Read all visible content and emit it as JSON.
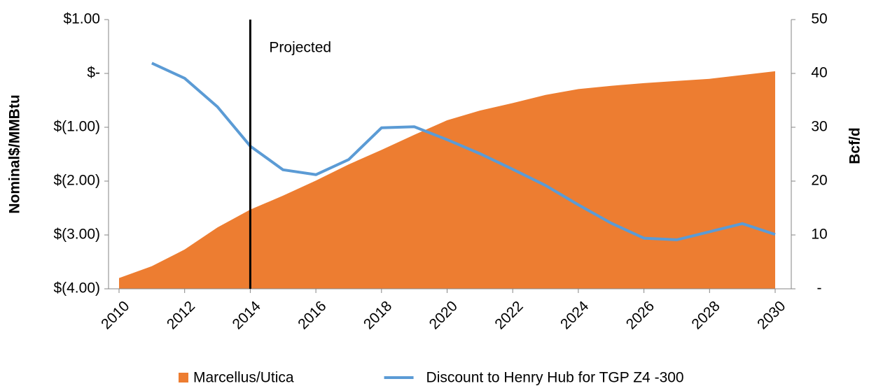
{
  "chart_data": {
    "type": "area-line",
    "y_label": "Nominal$/MMBtu",
    "y2_label": "Bcf/d",
    "x": [
      2010,
      2011,
      2012,
      2013,
      2014,
      2015,
      2016,
      2017,
      2018,
      2019,
      2020,
      2021,
      2022,
      2023,
      2024,
      2025,
      2026,
      2027,
      2028,
      2029,
      2030
    ],
    "xlim": [
      2010,
      2030
    ],
    "xticks": [
      2010,
      2012,
      2014,
      2016,
      2018,
      2020,
      2022,
      2024,
      2026,
      2028,
      2030
    ],
    "ylim": [
      -4,
      1
    ],
    "yticks": [
      {
        "value": 1,
        "label": "$1.00"
      },
      {
        "value": 0,
        "label": "$-"
      },
      {
        "value": -1,
        "label": "$(1.00)"
      },
      {
        "value": -2,
        "label": "$(2.00)"
      },
      {
        "value": -3,
        "label": "$(3.00)"
      },
      {
        "value": -4,
        "label": "$(4.00)"
      }
    ],
    "y2lim": [
      0,
      50
    ],
    "y2ticks": [
      50,
      40,
      30,
      20,
      10,
      {
        "value": 0,
        "label": "-"
      }
    ],
    "series": [
      {
        "name": "Marcellus/Utica",
        "kind": "area",
        "axis": "y2",
        "color": "#ed7d31",
        "values": [
          2,
          4.2,
          7.3,
          11.4,
          14.7,
          17.3,
          20.1,
          23.1,
          25.8,
          28.6,
          31.3,
          33.1,
          34.5,
          36.0,
          37.1,
          37.7,
          38.2,
          38.6,
          39.0,
          39.7,
          40.4
        ]
      },
      {
        "name": "Discount to Henry Hub for TGP Z4 -300",
        "kind": "line",
        "axis": "y",
        "color": "#5b9bd5",
        "values": [
          null,
          0.19,
          -0.09,
          -0.62,
          -1.35,
          -1.79,
          -1.88,
          -1.6,
          -1.01,
          -0.99,
          -1.23,
          -1.49,
          -1.78,
          -2.08,
          -2.44,
          -2.78,
          -3.06,
          -3.09,
          -2.94,
          -2.79,
          -2.99
        ]
      }
    ],
    "annotation": {
      "x": 2014,
      "text": "Projected",
      "color": "#000000"
    }
  }
}
